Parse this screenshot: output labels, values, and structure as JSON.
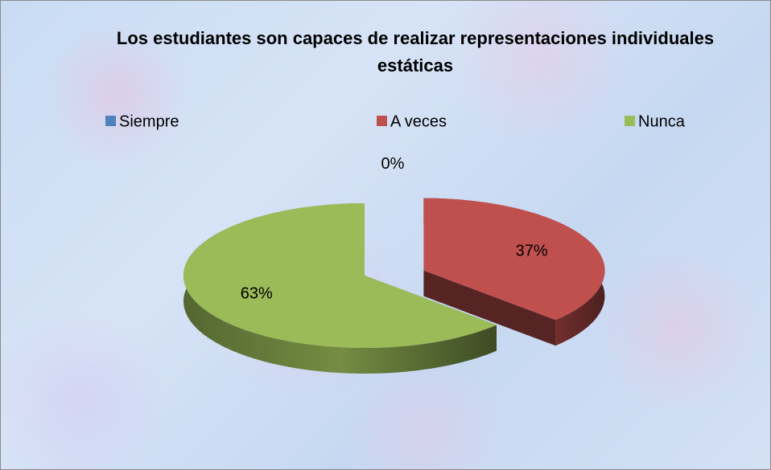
{
  "chart_data": {
    "type": "pie",
    "title": "Los estudiantes son capaces de realizar representaciones individuales estáticas",
    "categories": [
      "Siempre",
      "A veces",
      "Nunca"
    ],
    "values": [
      0,
      37,
      63
    ],
    "value_labels": [
      "0%",
      "37%",
      "63%"
    ],
    "colors": [
      "#4f81bd",
      "#c0504d",
      "#9bbb59"
    ],
    "legend": "top",
    "exploded": [
      1
    ]
  }
}
